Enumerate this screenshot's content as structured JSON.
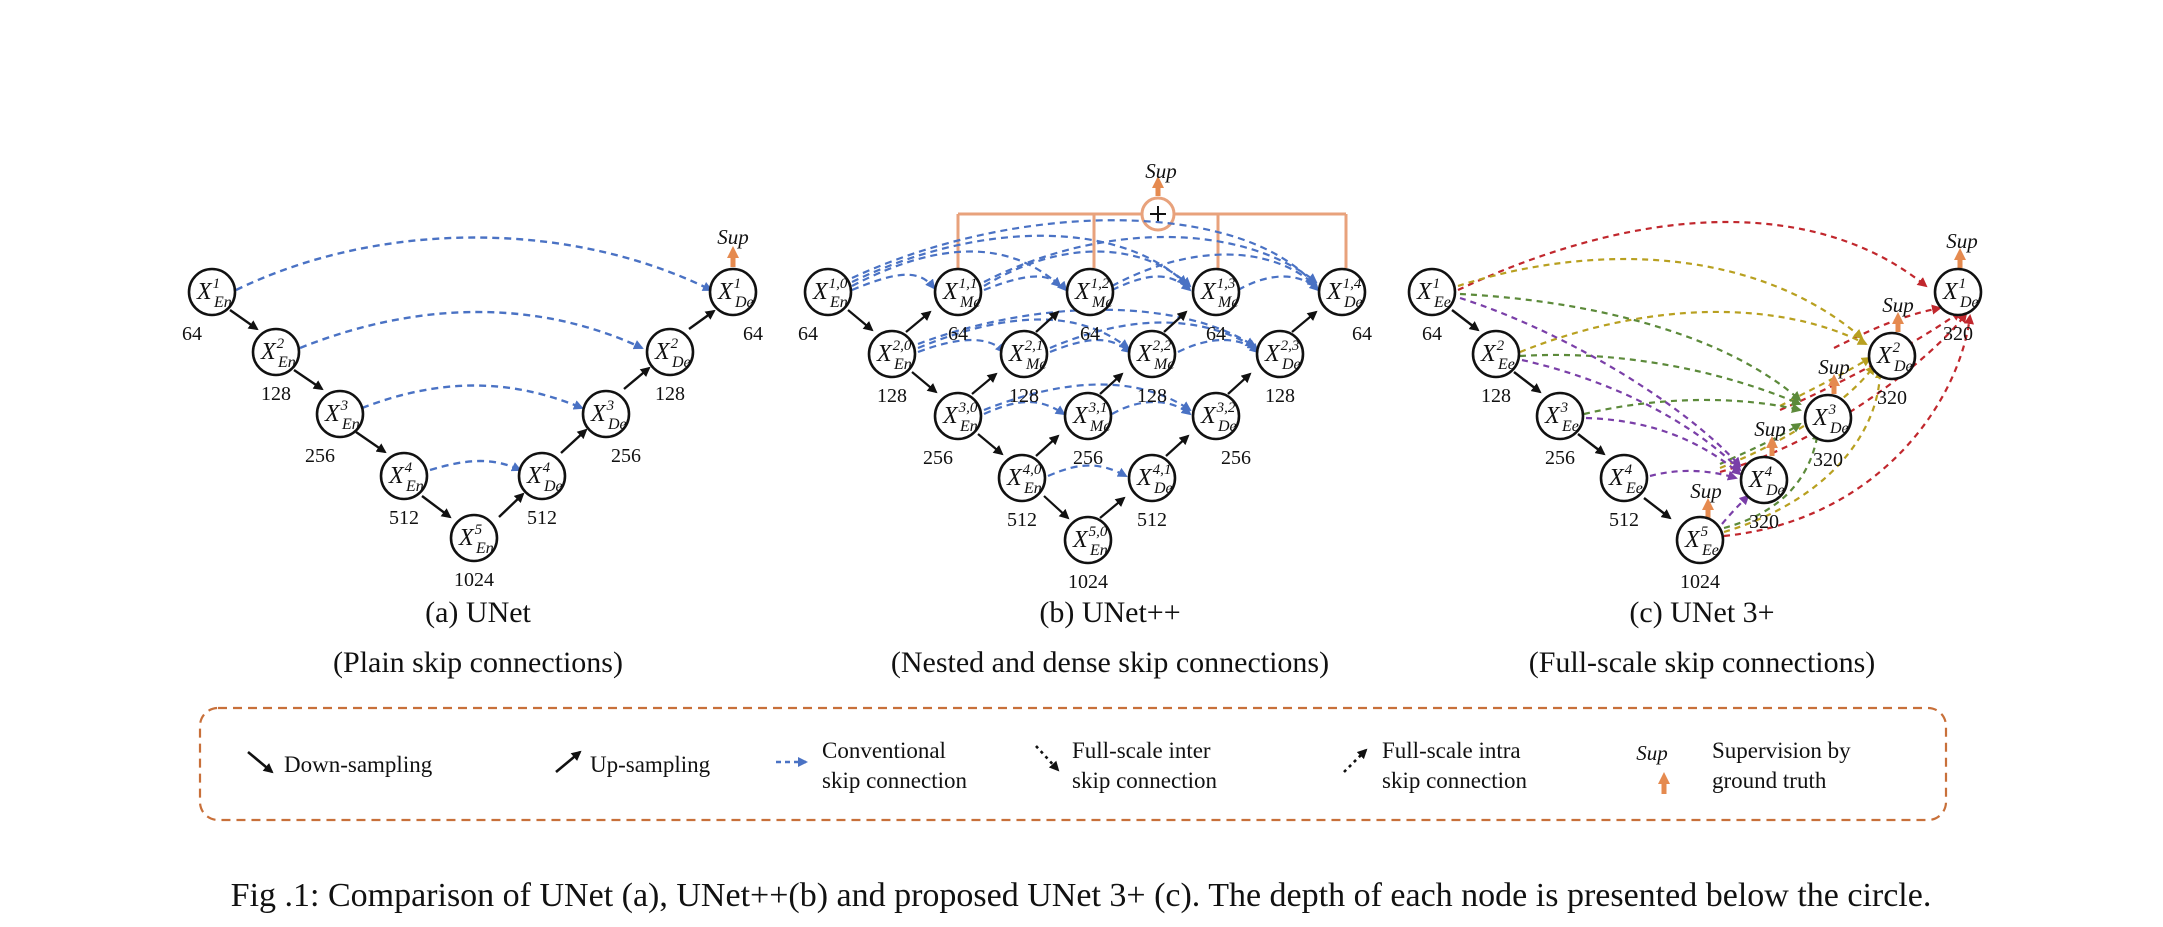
{
  "panels": [
    {
      "title": "(a) UNet",
      "subtitle": "(Plain skip connections)"
    },
    {
      "title": "(b) UNet++",
      "subtitle": "(Nested and dense skip connections)"
    },
    {
      "title": "(c) UNet 3+",
      "subtitle": "(Full-scale skip connections)"
    }
  ],
  "sup_label": "Sup",
  "unet": {
    "nodes": [
      {
        "id": "en1",
        "main": "X",
        "sup": "1",
        "sub": "En",
        "depth": "64"
      },
      {
        "id": "en2",
        "main": "X",
        "sup": "2",
        "sub": "En",
        "depth": "128"
      },
      {
        "id": "en3",
        "main": "X",
        "sup": "3",
        "sub": "En",
        "depth": "256"
      },
      {
        "id": "en4",
        "main": "X",
        "sup": "4",
        "sub": "En",
        "depth": "512"
      },
      {
        "id": "en5",
        "main": "X",
        "sup": "5",
        "sub": "En",
        "depth": "1024"
      },
      {
        "id": "de4",
        "main": "X",
        "sup": "4",
        "sub": "De",
        "depth": "512"
      },
      {
        "id": "de3",
        "main": "X",
        "sup": "3",
        "sub": "De",
        "depth": "256"
      },
      {
        "id": "de2",
        "main": "X",
        "sup": "2",
        "sub": "De",
        "depth": "128"
      },
      {
        "id": "de1",
        "main": "X",
        "sup": "1",
        "sub": "De",
        "depth": "64"
      }
    ]
  },
  "unetpp": {
    "nodes": [
      {
        "id": "00",
        "main": "X",
        "sup": "1,0",
        "sub": "En",
        "depth": "64"
      },
      {
        "id": "01",
        "main": "X",
        "sup": "1,1",
        "sub": "Me",
        "depth": "64"
      },
      {
        "id": "02",
        "main": "X",
        "sup": "1,2",
        "sub": "Me",
        "depth": "64"
      },
      {
        "id": "03",
        "main": "X",
        "sup": "1,3",
        "sub": "Me",
        "depth": "64"
      },
      {
        "id": "04",
        "main": "X",
        "sup": "1,4",
        "sub": "De",
        "depth": "64"
      },
      {
        "id": "10",
        "main": "X",
        "sup": "2,0",
        "sub": "En",
        "depth": "128"
      },
      {
        "id": "11",
        "main": "X",
        "sup": "2,1",
        "sub": "Me",
        "depth": "128"
      },
      {
        "id": "12",
        "main": "X",
        "sup": "2,2",
        "sub": "Me",
        "depth": "128"
      },
      {
        "id": "13",
        "main": "X",
        "sup": "2,3",
        "sub": "De",
        "depth": "128"
      },
      {
        "id": "20",
        "main": "X",
        "sup": "3,0",
        "sub": "En",
        "depth": "256"
      },
      {
        "id": "21",
        "main": "X",
        "sup": "3,1",
        "sub": "Me",
        "depth": "256"
      },
      {
        "id": "22",
        "main": "X",
        "sup": "3,2",
        "sub": "De",
        "depth": "256"
      },
      {
        "id": "30",
        "main": "X",
        "sup": "4,0",
        "sub": "En",
        "depth": "512"
      },
      {
        "id": "31",
        "main": "X",
        "sup": "4,1",
        "sub": "De",
        "depth": "512"
      },
      {
        "id": "40",
        "main": "X",
        "sup": "5,0",
        "sub": "En",
        "depth": "1024"
      }
    ]
  },
  "unet3p": {
    "nodes": [
      {
        "id": "e1",
        "main": "X",
        "sup": "1",
        "sub": "Ee",
        "depth": "64"
      },
      {
        "id": "e2",
        "main": "X",
        "sup": "2",
        "sub": "Ee",
        "depth": "128"
      },
      {
        "id": "e3",
        "main": "X",
        "sup": "3",
        "sub": "Ee",
        "depth": "256"
      },
      {
        "id": "e4",
        "main": "X",
        "sup": "4",
        "sub": "Ee",
        "depth": "512"
      },
      {
        "id": "e5",
        "main": "X",
        "sup": "5",
        "sub": "Ee",
        "depth": "1024"
      },
      {
        "id": "d4",
        "main": "X",
        "sup": "4",
        "sub": "De",
        "depth": "320"
      },
      {
        "id": "d3",
        "main": "X",
        "sup": "3",
        "sub": "De",
        "depth": "320"
      },
      {
        "id": "d2",
        "main": "X",
        "sup": "2",
        "sub": "De",
        "depth": "320"
      },
      {
        "id": "d1",
        "main": "X",
        "sup": "1",
        "sub": "De",
        "depth": "320"
      }
    ]
  },
  "legend": {
    "down": "Down-sampling",
    "up": "Up-sampling",
    "conv_1": "Conventional",
    "conv_2": "skip connection",
    "inter_1": "Full-scale inter",
    "inter_2": "skip connection",
    "intra_1": "Full-scale intra",
    "intra_2": "skip connection",
    "sup_1": "Supervision by",
    "sup_2": "ground truth"
  },
  "caption": "Fig .1: Comparison of UNet (a), UNet++(b) and proposed UNet 3+ (c). The depth of each node is presented below the circle.",
  "colors": {
    "skip_blue": "#4a72c4",
    "sup_orange": "#e58a4f",
    "legend_border": "#c8703a",
    "red": "#c1272d",
    "olive": "#b8a020",
    "green": "#5c8a3a",
    "purple": "#7a3fa8"
  }
}
